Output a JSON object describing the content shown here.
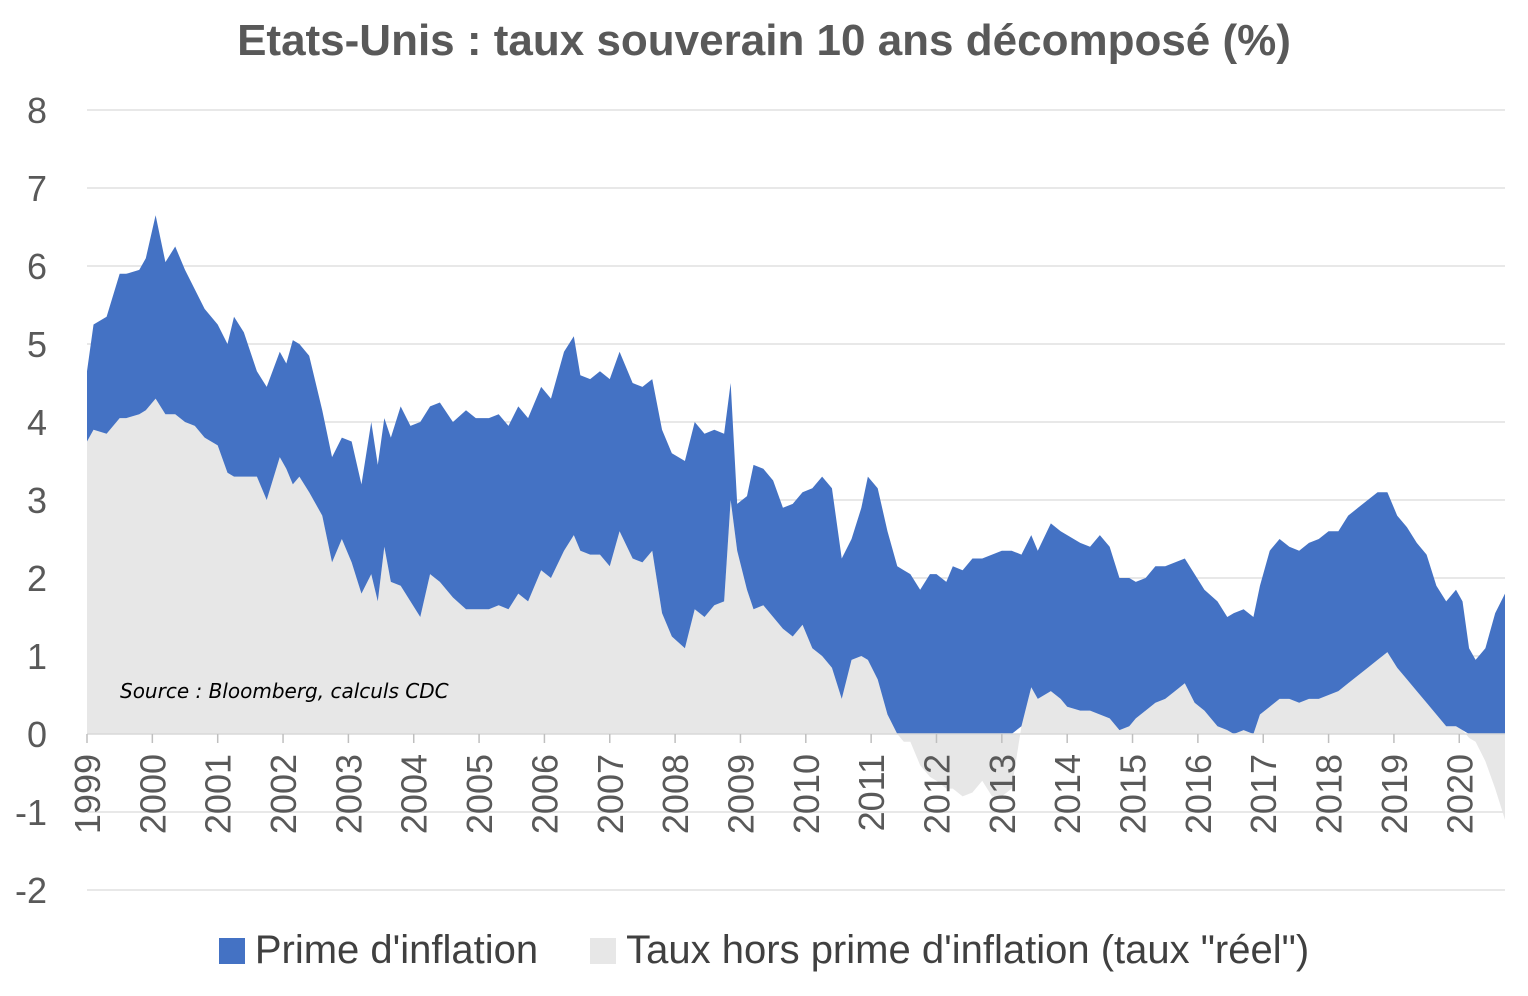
{
  "chart_data": {
    "type": "area",
    "title": "Etats-Unis : taux souverain 10 ans décomposé (%)",
    "annotation": "Source : Bloomberg, calculs CDC",
    "ylim": [
      -2,
      8
    ],
    "yticks": [
      "-2",
      "-1",
      "0",
      "1",
      "2",
      "3",
      "4",
      "5",
      "6",
      "7",
      "8"
    ],
    "xlim": [
      1999.0,
      2020.7
    ],
    "xticks": [
      "1999",
      "2000",
      "2001",
      "2002",
      "2003",
      "2004",
      "2005",
      "2006",
      "2007",
      "2008",
      "2009",
      "2010",
      "2011",
      "2012",
      "2013",
      "2014",
      "2015",
      "2016",
      "2017",
      "2018",
      "2019",
      "2020"
    ],
    "colors": {
      "inflation": "#4472C4",
      "real": "#E7E7E7",
      "grid": "#D9D9D9",
      "tick": "#595959",
      "legend_text": "#404040"
    },
    "series": [
      {
        "name": "Prime d'inflation",
        "key": "inflation",
        "description": "stacked on top of the real rate; top edge = nominal 10y yield",
        "x": [
          1999.0,
          1999.1,
          1999.3,
          1999.5,
          1999.6,
          1999.8,
          1999.9,
          2000.05,
          2000.2,
          2000.35,
          2000.5,
          2000.65,
          2000.8,
          2001.0,
          2001.15,
          2001.25,
          2001.4,
          2001.6,
          2001.75,
          2001.95,
          2002.05,
          2002.15,
          2002.25,
          2002.4,
          2002.6,
          2002.75,
          2002.9,
          2003.05,
          2003.2,
          2003.35,
          2003.45,
          2003.55,
          2003.65,
          2003.8,
          2003.95,
          2004.1,
          2004.25,
          2004.4,
          2004.6,
          2004.8,
          2004.95,
          2005.15,
          2005.3,
          2005.45,
          2005.6,
          2005.75,
          2005.95,
          2006.1,
          2006.3,
          2006.45,
          2006.55,
          2006.7,
          2006.85,
          2007.0,
          2007.15,
          2007.35,
          2007.5,
          2007.65,
          2007.8,
          2007.95,
          2008.15,
          2008.3,
          2008.45,
          2008.6,
          2008.75,
          2008.85,
          2008.95,
          2009.1,
          2009.2,
          2009.35,
          2009.5,
          2009.65,
          2009.8,
          2009.95,
          2010.1,
          2010.25,
          2010.4,
          2010.55,
          2010.7,
          2010.85,
          2010.95,
          2011.1,
          2011.25,
          2011.4,
          2011.5,
          2011.6,
          2011.75,
          2011.9,
          2012.0,
          2012.15,
          2012.25,
          2012.4,
          2012.55,
          2012.7,
          2012.85,
          2013.0,
          2013.15,
          2013.3,
          2013.45,
          2013.55,
          2013.75,
          2013.9,
          2014.0,
          2014.2,
          2014.35,
          2014.5,
          2014.65,
          2014.8,
          2014.95,
          2015.05,
          2015.2,
          2015.35,
          2015.5,
          2015.65,
          2015.8,
          2015.95,
          2016.1,
          2016.3,
          2016.45,
          2016.55,
          2016.7,
          2016.85,
          2016.95,
          2017.1,
          2017.25,
          2017.4,
          2017.55,
          2017.7,
          2017.85,
          2018.0,
          2018.15,
          2018.3,
          2018.45,
          2018.6,
          2018.75,
          2018.9,
          2019.05,
          2019.2,
          2019.35,
          2019.5,
          2019.65,
          2019.8,
          2019.95,
          2020.05,
          2020.15,
          2020.25,
          2020.4,
          2020.55,
          2020.7
        ],
        "values": [
          0.9,
          1.35,
          1.5,
          1.85,
          1.85,
          1.85,
          1.95,
          2.35,
          1.95,
          2.15,
          1.95,
          1.75,
          1.65,
          1.55,
          1.65,
          2.05,
          1.85,
          1.35,
          1.45,
          1.35,
          1.35,
          1.85,
          1.7,
          1.75,
          1.35,
          1.35,
          1.3,
          1.55,
          1.4,
          1.95,
          1.75,
          1.65,
          1.85,
          2.3,
          2.25,
          2.5,
          2.15,
          2.3,
          2.25,
          2.55,
          2.45,
          2.45,
          2.45,
          2.35,
          2.4,
          2.35,
          2.35,
          2.3,
          2.55,
          2.55,
          2.25,
          2.25,
          2.35,
          2.4,
          2.3,
          2.25,
          2.25,
          2.2,
          2.35,
          2.35,
          2.4,
          2.4,
          2.35,
          2.25,
          2.15,
          1.5,
          0.6,
          1.2,
          1.85,
          1.75,
          1.75,
          1.55,
          1.7,
          1.7,
          2.05,
          2.3,
          2.3,
          1.8,
          1.55,
          1.9,
          2.35,
          2.45,
          2.35,
          2.15,
          2.1,
          2.05,
          1.85,
          2.05,
          2.05,
          1.95,
          2.15,
          2.1,
          2.25,
          2.25,
          2.3,
          2.35,
          2.35,
          2.2,
          1.95,
          1.9,
          2.15,
          2.15,
          2.2,
          2.15,
          2.1,
          2.3,
          2.2,
          1.95,
          1.9,
          1.75,
          1.7,
          1.75,
          1.7,
          1.65,
          1.6,
          1.65,
          1.55,
          1.6,
          1.45,
          1.55,
          1.55,
          1.5,
          1.65,
          2.0,
          2.05,
          1.95,
          1.95,
          2.0,
          2.05,
          2.1,
          2.05,
          2.15,
          2.15,
          2.15,
          2.15,
          2.05,
          1.95,
          1.95,
          1.9,
          1.9,
          1.65,
          1.6,
          1.75,
          1.65,
          1.1,
          0.95,
          1.1,
          1.55,
          1.8
        ]
      },
      {
        "name": "Taux hors prime d'inflation (taux \"réel\")",
        "key": "real",
        "x": [
          1999.0,
          1999.1,
          1999.3,
          1999.5,
          1999.6,
          1999.8,
          1999.9,
          2000.05,
          2000.2,
          2000.35,
          2000.5,
          2000.65,
          2000.8,
          2001.0,
          2001.15,
          2001.25,
          2001.4,
          2001.6,
          2001.75,
          2001.95,
          2002.05,
          2002.15,
          2002.25,
          2002.4,
          2002.6,
          2002.75,
          2002.9,
          2003.05,
          2003.2,
          2003.35,
          2003.45,
          2003.55,
          2003.65,
          2003.8,
          2003.95,
          2004.1,
          2004.25,
          2004.4,
          2004.6,
          2004.8,
          2004.95,
          2005.15,
          2005.3,
          2005.45,
          2005.6,
          2005.75,
          2005.95,
          2006.1,
          2006.3,
          2006.45,
          2006.55,
          2006.7,
          2006.85,
          2007.0,
          2007.15,
          2007.35,
          2007.5,
          2007.65,
          2007.8,
          2007.95,
          2008.15,
          2008.3,
          2008.45,
          2008.6,
          2008.75,
          2008.85,
          2008.95,
          2009.1,
          2009.2,
          2009.35,
          2009.5,
          2009.65,
          2009.8,
          2009.95,
          2010.1,
          2010.25,
          2010.4,
          2010.55,
          2010.7,
          2010.85,
          2010.95,
          2011.1,
          2011.25,
          2011.4,
          2011.5,
          2011.6,
          2011.75,
          2011.9,
          2012.0,
          2012.15,
          2012.25,
          2012.4,
          2012.55,
          2012.7,
          2012.85,
          2013.0,
          2013.15,
          2013.3,
          2013.45,
          2013.55,
          2013.75,
          2013.9,
          2014.0,
          2014.2,
          2014.35,
          2014.5,
          2014.65,
          2014.8,
          2014.95,
          2015.05,
          2015.2,
          2015.35,
          2015.5,
          2015.65,
          2015.8,
          2015.95,
          2016.1,
          2016.3,
          2016.45,
          2016.55,
          2016.7,
          2016.85,
          2016.95,
          2017.1,
          2017.25,
          2017.4,
          2017.55,
          2017.7,
          2017.85,
          2018.0,
          2018.15,
          2018.3,
          2018.45,
          2018.6,
          2018.75,
          2018.9,
          2019.05,
          2019.2,
          2019.35,
          2019.5,
          2019.65,
          2019.8,
          2019.95,
          2020.05,
          2020.15,
          2020.25,
          2020.4,
          2020.55,
          2020.7
        ],
        "values": [
          3.75,
          3.9,
          3.85,
          4.05,
          4.05,
          4.1,
          4.15,
          4.3,
          4.1,
          4.1,
          4.0,
          3.95,
          3.8,
          3.7,
          3.35,
          3.3,
          3.3,
          3.3,
          3.0,
          3.55,
          3.4,
          3.2,
          3.3,
          3.1,
          2.8,
          2.2,
          2.5,
          2.2,
          1.8,
          2.05,
          1.7,
          2.4,
          1.95,
          1.9,
          1.7,
          1.5,
          2.05,
          1.95,
          1.75,
          1.6,
          1.6,
          1.6,
          1.65,
          1.6,
          1.8,
          1.7,
          2.1,
          2.0,
          2.35,
          2.55,
          2.35,
          2.3,
          2.3,
          2.15,
          2.6,
          2.25,
          2.2,
          2.35,
          1.55,
          1.25,
          1.1,
          1.6,
          1.5,
          1.65,
          1.7,
          3.0,
          2.35,
          1.85,
          1.6,
          1.65,
          1.5,
          1.35,
          1.25,
          1.4,
          1.1,
          1.0,
          0.85,
          0.45,
          0.95,
          1.0,
          0.95,
          0.7,
          0.25,
          0.0,
          -0.1,
          -0.1,
          -0.4,
          -0.55,
          -0.6,
          -0.7,
          -0.7,
          -0.8,
          -0.75,
          -0.6,
          -0.8,
          -0.8,
          -0.7,
          0.1,
          0.6,
          0.45,
          0.55,
          0.45,
          0.35,
          0.3,
          0.3,
          0.25,
          0.2,
          0.05,
          0.1,
          0.2,
          0.3,
          0.4,
          0.45,
          0.55,
          0.65,
          0.4,
          0.3,
          0.1,
          0.05,
          0.0,
          0.05,
          0.0,
          0.25,
          0.35,
          0.45,
          0.45,
          0.4,
          0.45,
          0.45,
          0.5,
          0.55,
          0.65,
          0.75,
          0.85,
          0.95,
          1.05,
          0.85,
          0.7,
          0.55,
          0.4,
          0.25,
          0.1,
          0.1,
          0.05,
          -0.05,
          -0.1,
          -0.35,
          -0.7,
          -1.1
        ]
      }
    ]
  },
  "legend": {
    "items": [
      {
        "label": "Prime d'inflation",
        "color": "#4472C4"
      },
      {
        "label": "Taux hors prime d'inflation (taux \"réel\")",
        "color": "#E7E7E7"
      }
    ]
  }
}
